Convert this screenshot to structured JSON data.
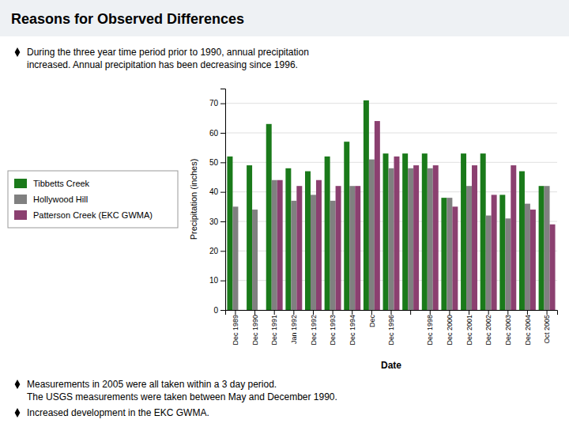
{
  "chart_data": {
    "type": "bar",
    "title": "Reasons for Observed Differences",
    "xlabel": "Date",
    "ylabel": "Precipitation (inches)",
    "categories": [
      "Dec 1989",
      "Dec 1990",
      "Dec 1991",
      "Jan 1992",
      "Dec 1992",
      "Dec 1993",
      "Dec 1994",
      "Dec",
      "Dec 1996",
      null,
      "Dec 1998",
      "Dec 2000",
      "Dec 2001",
      "Dec 2002",
      "Dec 2003",
      "Dec 2004",
      "Oct 2005"
    ],
    "series": [
      {
        "name": "Tibbetts Creek",
        "color": "#1a7a1a",
        "values": [
          52,
          49,
          63,
          48,
          47,
          52,
          57,
          71,
          53,
          53,
          53,
          38,
          53,
          53,
          39,
          47,
          42
        ]
      },
      {
        "name": "Hollywood Hill",
        "color": "#808080",
        "values": [
          35,
          34,
          44,
          37,
          39,
          37,
          42,
          51,
          48,
          48,
          48,
          38,
          42,
          32,
          31,
          36,
          42
        ]
      },
      {
        "name": "Patterson Creek (EKC GWMA)",
        "color": "#8b4070",
        "values": [
          0,
          0,
          44,
          42,
          44,
          42,
          42,
          64,
          52,
          49,
          49,
          35,
          49,
          39,
          49,
          34,
          29
        ]
      }
    ],
    "ylim": [
      0,
      75
    ],
    "yticks": [
      0,
      10,
      20,
      30,
      40,
      50,
      60,
      70
    ],
    "grid": true,
    "legend": "left",
    "annotations": [
      [
        "During the three year time period prior to 1990, annual precipitation",
        "increased.  Annual precipitation has been decreasing since 1996."
      ],
      [
        "Measurements in 2005 were all taken within a 3 day period.",
        "The USGS measurements were taken between May and December 1990."
      ],
      [
        "Increased development in the EKC GWMA."
      ]
    ]
  }
}
